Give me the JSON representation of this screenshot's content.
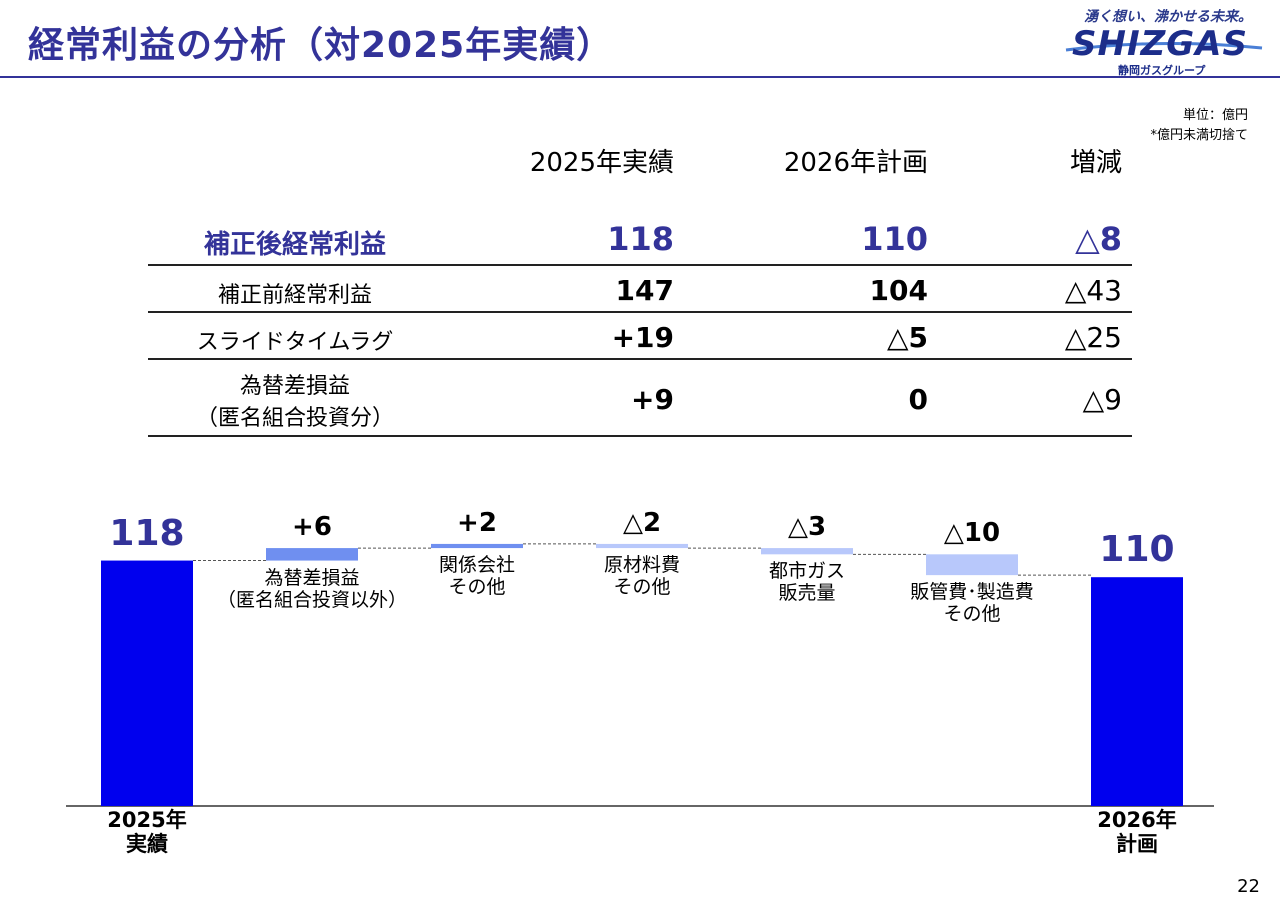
{
  "header": {
    "title": "経常利益の分析（対2025年実績）"
  },
  "logo": {
    "tagline": "湧く想い、沸かせる未来。",
    "word": "SHIZGAS",
    "group": "静岡ガスグループ"
  },
  "unit": {
    "line1": "単位：億円",
    "line2": "*億円未満切捨て"
  },
  "table": {
    "headers": [
      "2025年実績",
      "2026年計画",
      "増減"
    ],
    "rows": [
      {
        "label": "補正後経常利益",
        "label2": "",
        "v2025": "118",
        "v2026": "110",
        "diff": "△8"
      },
      {
        "label": "補正前経常利益",
        "label2": "",
        "v2025": "147",
        "v2026": "104",
        "diff": "△43"
      },
      {
        "label": "スライドタイムラグ",
        "label2": "",
        "v2025": "+19",
        "v2026": "△5",
        "diff": "△25"
      },
      {
        "label": "為替差損益",
        "label2": "（匿名組合投資分）",
        "v2025": "+9",
        "v2026": "0",
        "diff": "△9"
      }
    ]
  },
  "chart_data": {
    "type": "bar",
    "subtype": "waterfall",
    "categories": [
      "2025年\n実績",
      "為替差損益\n（匿名組合投資以外）",
      "関係会社\nその他",
      "原材料費\nその他",
      "都市ガス\n販売量",
      "販管費･製造費\nその他",
      "2026年\n計画"
    ],
    "start": {
      "label": "2025年\n実績",
      "value": 118,
      "display": "118"
    },
    "end": {
      "label": "2026年\n計画",
      "value": 110,
      "display": "110"
    },
    "steps": [
      {
        "label": "為替差損益\n（匿名組合投資以外）",
        "value": 6,
        "display": "+6"
      },
      {
        "label": "関係会社\nその他",
        "value": 2,
        "display": "+2"
      },
      {
        "label": "原材料費\nその他",
        "value": -2,
        "display": "△2"
      },
      {
        "label": "都市ガス\n販売量",
        "value": -3,
        "display": "△3"
      },
      {
        "label": "販管費･製造費\nその他",
        "value": -10,
        "display": "△10"
      }
    ],
    "colors": {
      "total": "#0000ee",
      "increase": "#6f8ff0",
      "decrease": "#b8c8fb",
      "connector": "#555555"
    },
    "ylim": [
      0,
      130
    ]
  },
  "page": {
    "number": "22"
  }
}
